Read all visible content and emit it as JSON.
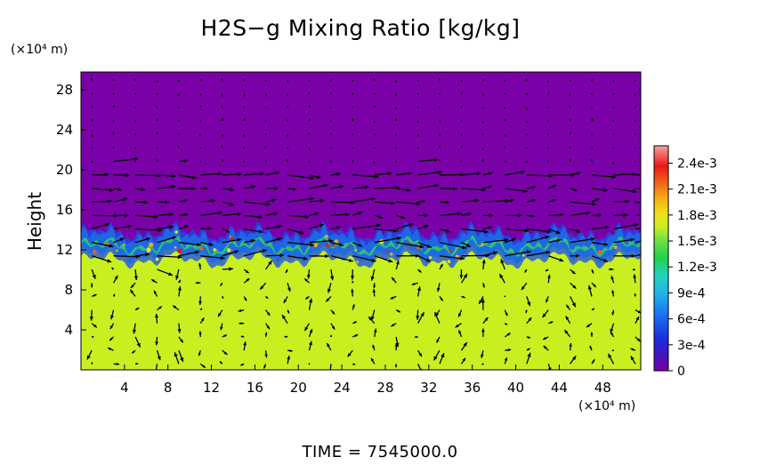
{
  "chart_data": {
    "type": "heatmap",
    "title": "H2S−g Mixing Ratio [kg/kg]",
    "ylabel": "Height",
    "y_units": "(×10⁴ m)",
    "x_units": "(×10⁴ m)",
    "xlim": [
      0,
      51.5
    ],
    "ylim": [
      0,
      29.8
    ],
    "x_ticks": [
      4,
      8,
      12,
      16,
      20,
      24,
      28,
      32,
      36,
      40,
      44,
      48
    ],
    "x_tick_labels": [
      "4",
      "8",
      "12",
      "16",
      "20",
      "24",
      "28",
      "32",
      "36",
      "40",
      "44",
      "48"
    ],
    "y_ticks": [
      4,
      8,
      12,
      16,
      20,
      24,
      28
    ],
    "y_tick_labels": [
      "4",
      "8",
      "12",
      "16",
      "20",
      "24",
      "28"
    ],
    "colorbar": {
      "min": 0,
      "max": 0.0026,
      "tick_values": [
        0,
        0.0003,
        0.0006,
        0.0009,
        0.0012,
        0.0015,
        0.0018,
        0.0021,
        0.0024
      ],
      "tick_labels": [
        "0",
        "3e-4",
        "6e-4",
        "9e-4",
        "1.2e-3",
        "1.5e-3",
        "1.8e-3",
        "2.1e-3",
        "2.4e-3"
      ]
    },
    "field": {
      "lower_layer_value": 0.0016,
      "upper_layer_value": 0.0,
      "interface_height": 12.5,
      "interface_height_range": [
        11.2,
        14.0
      ]
    },
    "overlay": "velocity vectors (arrows)",
    "footer": "TIME = 7545000.0"
  }
}
